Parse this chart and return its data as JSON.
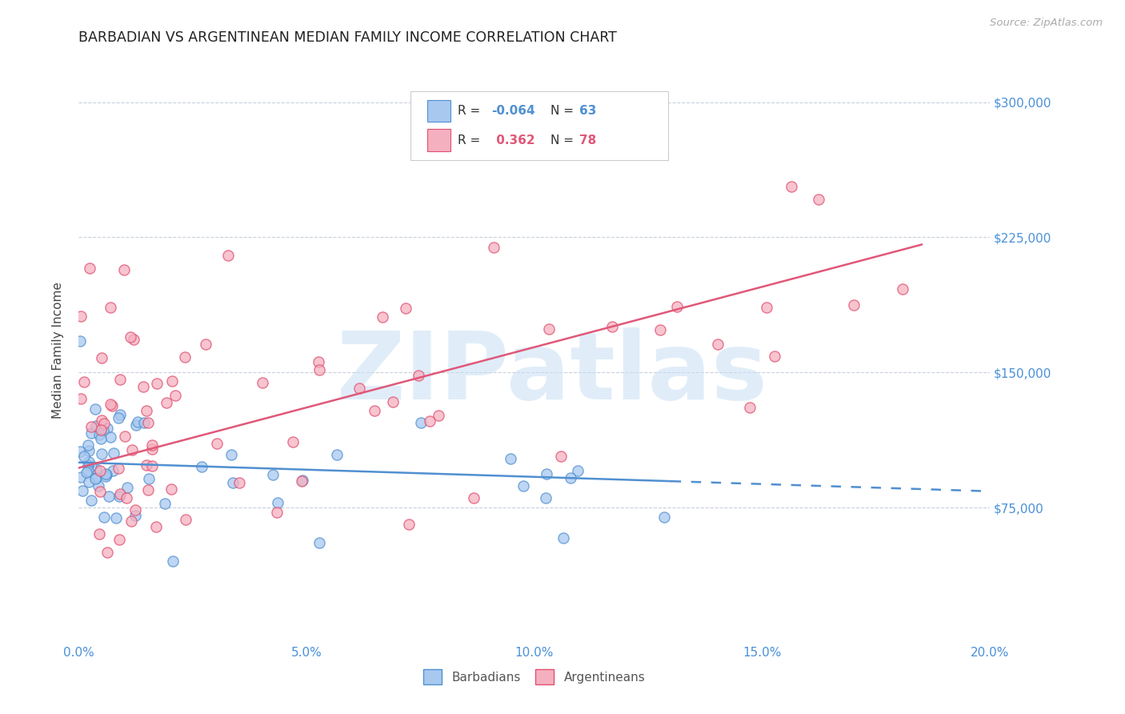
{
  "title": "BARBADIAN VS ARGENTINEAN MEDIAN FAMILY INCOME CORRELATION CHART",
  "source": "Source: ZipAtlas.com",
  "ylabel": "Median Family Income",
  "xlabel_ticks": [
    "0.0%",
    "5.0%",
    "10.0%",
    "15.0%",
    "20.0%"
  ],
  "xlabel_vals": [
    0.0,
    5.0,
    10.0,
    15.0,
    20.0
  ],
  "ytick_vals": [
    0,
    75000,
    150000,
    225000,
    300000
  ],
  "ytick_right_labels": [
    "",
    "$75,000",
    "$150,000",
    "$225,000",
    "$300,000"
  ],
  "xlim": [
    0.0,
    20.0
  ],
  "ylim": [
    0,
    325000
  ],
  "barbadian_face": "#a8c8f0",
  "barbadian_edge": "#5090d0",
  "argentinean_face": "#f5b0c0",
  "argentinean_edge": "#e05070",
  "trend_blue": "#5090d0",
  "trend_pink": "#e05878",
  "watermark": "ZIPatlas",
  "watermark_color": "#c8dff5",
  "axis_label_color": "#4a90d9",
  "grid_color": "#c8d0dc",
  "background_color": "#ffffff",
  "title_fontsize": 12.5,
  "source_fontsize": 9.5,
  "tick_fontsize": 11,
  "axis_label_fontsize": 11,
  "barb_intercept": 100000,
  "barb_slope": -800,
  "barb_solid_end": 13.0,
  "arg_intercept": 97000,
  "arg_slope": 6700,
  "arg_solid_end": 18.5
}
